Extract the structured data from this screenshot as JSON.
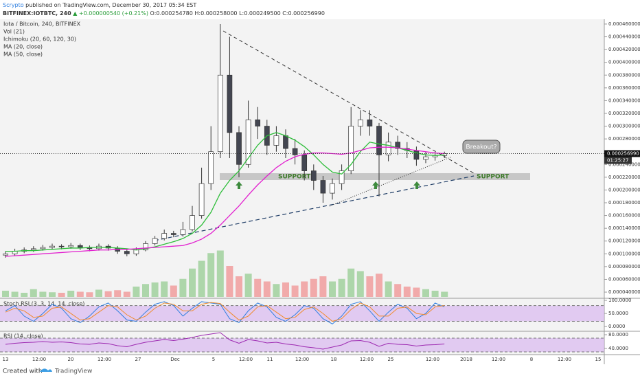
{
  "header": {
    "author": "Scrypto",
    "published": "published on TradingView.com, December 30, 2017 05:34 EST",
    "symbol": "BITFINEX:IOTBTC, 240",
    "change": "▲ +0.000000540 (+0.21%)",
    "ohlc": "O:0.000254780 H:0.000258000 L:0.000249500 C:0.000256990"
  },
  "chart_data": {
    "type": "candlestick",
    "title": "Iota / Bitcoin, 240, BITFINEX",
    "indicators": [
      "Vol (21)",
      "Ichimoku (20, 60, 120, 30)"
    ],
    "open": [
      9.8e-05,
      0.0001,
      0.000104,
      0.000106,
      0.000108,
      0.00011,
      0.000112,
      0.000111,
      0.000113,
      0.00011,
      0.000108,
      0.000112,
      0.000109,
      0.000104,
      0.0001,
      0.000106,
      0.000116,
      0.000124,
      0.000132,
      0.00013,
      0.000138,
      0.00016,
      0.00021,
      0.00026,
      0.00038,
      0.00029,
      0.00024,
      0.00031,
      0.0003,
      0.00027,
      0.000285,
      0.000265,
      0.000255,
      0.00023,
      0.000215,
      0.000195,
      0.00021,
      0.00023,
      0.0003,
      0.00031,
      0.0003,
      0.000255,
      0.000275,
      0.000265,
      0.000262,
      0.000248,
      0.000252,
      0.000254
    ],
    "high": [
      0.000104,
      0.000108,
      0.00011,
      0.000112,
      0.000114,
      0.000116,
      0.000115,
      0.000117,
      0.000116,
      0.000113,
      0.000116,
      0.000115,
      0.000112,
      0.000107,
      0.00011,
      0.00012,
      0.000128,
      0.000138,
      0.000136,
      0.00015,
      0.000175,
      0.000235,
      0.0003,
      0.00046,
      0.00044,
      0.0003,
      0.00034,
      0.00033,
      0.00031,
      0.0003,
      0.000295,
      0.00028,
      0.000262,
      0.00024,
      0.000222,
      0.000218,
      0.00024,
      0.00033,
      0.000325,
      0.000325,
      0.000305,
      0.00029,
      0.000285,
      0.000275,
      0.000268,
      0.00026,
      0.00026,
      0.00026
    ],
    "low": [
      9.4e-05,
      9.7e-05,
      0.000101,
      0.000103,
      0.000105,
      0.000107,
      0.000107,
      0.000108,
      0.000106,
      0.000104,
      0.000105,
      0.000105,
      0.0001,
      9.6e-05,
      9.7e-05,
      0.000104,
      0.000113,
      0.000121,
      0.000126,
      0.000127,
      0.000135,
      0.000155,
      0.0002,
      0.00025,
      0.00025,
      0.00022,
      0.000235,
      0.00028,
      0.000255,
      0.00026,
      0.00025,
      0.00024,
      0.000215,
      0.0002,
      0.00018,
      0.000185,
      0.0002,
      0.000225,
      0.000285,
      0.000285,
      0.00019,
      0.000245,
      0.000255,
      0.00025,
      0.000238,
      0.000242,
      0.000246,
      0.00025
    ],
    "close": [
      0.0001,
      0.000104,
      0.000106,
      0.000108,
      0.00011,
      0.000112,
      0.000111,
      0.000113,
      0.00011,
      0.000108,
      0.000112,
      0.000109,
      0.000104,
      0.0001,
      0.000106,
      0.000116,
      0.000124,
      0.000132,
      0.00013,
      0.000138,
      0.00016,
      0.00021,
      0.00026,
      0.00038,
      0.00029,
      0.00024,
      0.00031,
      0.0003,
      0.00027,
      0.000285,
      0.000265,
      0.000255,
      0.00023,
      0.000215,
      0.000195,
      0.00021,
      0.00023,
      0.0003,
      0.00031,
      0.0003,
      0.000255,
      0.000275,
      0.000265,
      0.000262,
      0.000248,
      0.000252,
      0.000254,
      0.000257
    ],
    "volume": [
      12,
      10,
      8,
      15,
      10,
      9,
      8,
      12,
      10,
      9,
      14,
      11,
      13,
      10,
      20,
      25,
      28,
      30,
      22,
      35,
      55,
      70,
      85,
      90,
      60,
      40,
      45,
      35,
      30,
      25,
      28,
      22,
      30,
      35,
      40,
      30,
      35,
      55,
      50,
      40,
      45,
      30,
      25,
      20,
      18,
      15,
      12,
      10
    ],
    "up_color": "#ffffff",
    "down_color": "#434651",
    "volume_up_color": "#8fc98a",
    "volume_down_color": "#f08a8a",
    "series": [
      {
        "name": "MA (20, close)",
        "color": "#2ebd3a",
        "values": [
          0.000104,
          0.000104,
          0.000105,
          0.000105,
          0.000106,
          0.000107,
          0.000108,
          0.000109,
          0.000109,
          0.00011,
          0.00011,
          0.00011,
          0.000109,
          0.000108,
          0.000106,
          0.000108,
          0.000111,
          0.000115,
          0.000119,
          0.000124,
          0.000132,
          0.000145,
          0.000165,
          0.000195,
          0.000215,
          0.00023,
          0.00025,
          0.00027,
          0.000285,
          0.00029,
          0.000285,
          0.000278,
          0.000268,
          0.000255,
          0.00024,
          0.000228,
          0.000225,
          0.00024,
          0.00026,
          0.000275,
          0.000272,
          0.00027,
          0.000266,
          0.000262,
          0.000258,
          0.000255,
          0.000254,
          0.000255
        ]
      },
      {
        "name": "MA (50, close)",
        "color": "#e21fcf",
        "values": [
          9.6e-05,
          9.7e-05,
          9.8e-05,
          9.9e-05,
          0.0001,
          0.000101,
          0.000102,
          0.000103,
          0.000104,
          0.000105,
          0.000106,
          0.000106,
          0.000107,
          0.000107,
          0.000108,
          0.000109,
          0.00011,
          0.000111,
          0.000112,
          0.000113,
          0.000117,
          0.000123,
          0.000132,
          0.000145,
          0.00016,
          0.000175,
          0.000192,
          0.000208,
          0.000222,
          0.000235,
          0.000245,
          0.000252,
          0.000256,
          0.000258,
          0.000258,
          0.000257,
          0.000256,
          0.000258,
          0.000262,
          0.000266,
          0.000267,
          0.000267,
          0.000266,
          0.000264,
          0.000262,
          0.00026,
          0.000258,
          0.000257
        ]
      }
    ],
    "ylim": [
      3.25e-05,
      0.0004675
    ],
    "yticks": [
      {
        "value": 0.00046,
        "label": "0.000460000"
      },
      {
        "value": 0.00044,
        "label": "0.000440000"
      },
      {
        "value": 0.00042,
        "label": "0.000420000"
      },
      {
        "value": 0.0004,
        "label": "0.000400000"
      },
      {
        "value": 0.00038,
        "label": "0.000380000"
      },
      {
        "value": 0.00036,
        "label": "0.000360000"
      },
      {
        "value": 0.00034,
        "label": "0.000340000"
      },
      {
        "value": 0.00032,
        "label": "0.000320000"
      },
      {
        "value": 0.0003,
        "label": "0.000300000"
      },
      {
        "value": 0.00028,
        "label": "0.000280000"
      },
      {
        "value": 0.00024,
        "label": "0.000240000"
      },
      {
        "value": 0.00022,
        "label": "0.000220000"
      },
      {
        "value": 0.0002,
        "label": "0.000200000"
      },
      {
        "value": 0.00018,
        "label": "0.000180000"
      },
      {
        "value": 0.00016,
        "label": "0.000160000"
      },
      {
        "value": 0.00014,
        "label": "0.000140000"
      },
      {
        "value": 0.00012,
        "label": "0.000120000"
      },
      {
        "value": 0.0001,
        "label": "0.000100000"
      },
      {
        "value": 8e-05,
        "label": "0.000080000"
      },
      {
        "value": 6e-05,
        "label": "0.000060000"
      },
      {
        "value": 4e-05,
        "label": "0.000040000"
      }
    ],
    "last_price": {
      "value": 0.00025699,
      "label": "0.000256990"
    },
    "countdown": "01:25:27",
    "annotations": [
      "SUPPORT",
      "SUPPORT",
      "Breakout?"
    ],
    "x_labels": [
      "13",
      "12:00",
      "20",
      "12:00",
      "27",
      "Dec",
      "5",
      "12:00",
      "11",
      "12:00",
      "18",
      "12:00",
      "25",
      "12:00",
      "2018",
      "12:00",
      "8",
      "12:00",
      "15"
    ],
    "stoch_rsi": {
      "title": "Stoch RSI (3, 3, 14, 14, close)",
      "ylim": [
        -18,
        108
      ],
      "band": [
        20,
        80
      ],
      "yticks": [
        {
          "value": 100,
          "label": "100.0000"
        },
        {
          "value": 50,
          "label": "50.0000"
        },
        {
          "value": 0,
          "label": "0.0000"
        }
      ],
      "series": [
        {
          "color": "#2f7fe0",
          "values": [
            60,
            80,
            40,
            20,
            50,
            85,
            70,
            30,
            15,
            40,
            75,
            90,
            60,
            25,
            20,
            55,
            85,
            95,
            80,
            40,
            70,
            95,
            90,
            85,
            30,
            15,
            60,
            90,
            75,
            35,
            20,
            45,
            80,
            70,
            30,
            10,
            40,
            85,
            95,
            60,
            20,
            55,
            85,
            70,
            30,
            50,
            90,
            75
          ]
        },
        {
          "color": "#f08c2e",
          "values": [
            55,
            70,
            60,
            35,
            40,
            70,
            75,
            50,
            25,
            30,
            55,
            80,
            75,
            45,
            25,
            40,
            70,
            90,
            85,
            60,
            60,
            85,
            92,
            88,
            55,
            25,
            40,
            75,
            80,
            55,
            30,
            35,
            65,
            75,
            50,
            20,
            30,
            65,
            90,
            75,
            40,
            40,
            70,
            75,
            50,
            45,
            75,
            80
          ]
        }
      ]
    },
    "rsi": {
      "title": "RSI (14, close)",
      "ylim": [
        22,
        90
      ],
      "band": [
        30,
        70
      ],
      "yticks": [
        {
          "value": 80,
          "label": "80.0000"
        },
        {
          "value": 40,
          "label": "40.0000"
        }
      ],
      "series": [
        {
          "color": "#9c27b0",
          "values": [
            52,
            55,
            57,
            58,
            60,
            58,
            59,
            57,
            53,
            52,
            56,
            54,
            48,
            45,
            52,
            58,
            62,
            66,
            63,
            67,
            72,
            78,
            82,
            86,
            65,
            55,
            66,
            62,
            56,
            58,
            53,
            50,
            45,
            42,
            38,
            44,
            50,
            62,
            63,
            58,
            46,
            55,
            52,
            51,
            47,
            50,
            51,
            53
          ]
        }
      ]
    }
  },
  "footer": {
    "created": "Created with",
    "brand": "TradingView"
  }
}
